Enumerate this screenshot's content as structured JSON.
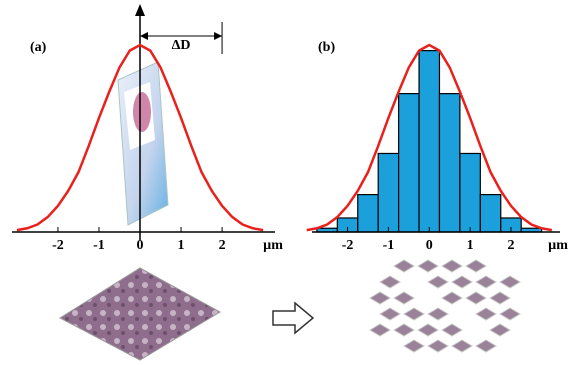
{
  "chart_data": [
    {
      "type": "line",
      "panel_label": "(a)",
      "x_label": "µm",
      "x": [
        -3,
        -2.75,
        -2.5,
        -2.25,
        -2,
        -1.75,
        -1.5,
        -1.25,
        -1,
        -0.75,
        -0.5,
        -0.25,
        0,
        0.25,
        0.5,
        0.75,
        1,
        1.25,
        1.5,
        1.75,
        2,
        2.25,
        2.5,
        2.75,
        3
      ],
      "values": [
        0.01,
        0.02,
        0.04,
        0.08,
        0.14,
        0.22,
        0.32,
        0.46,
        0.61,
        0.75,
        0.88,
        0.97,
        1,
        0.97,
        0.88,
        0.75,
        0.61,
        0.46,
        0.32,
        0.22,
        0.14,
        0.08,
        0.04,
        0.02,
        0.01
      ],
      "color": "#e8211d",
      "xlim": [
        -3.12,
        3.29
      ],
      "ylim": [
        0,
        1
      ],
      "xticks": [
        -2,
        -1,
        0,
        1,
        2
      ],
      "annotation": {
        "text": "ΔD",
        "x": [
          0,
          2
        ]
      }
    },
    {
      "type": "histogram",
      "panel_label": "(b)",
      "x_label": "µm",
      "bins": [
        -2.75,
        -2.25,
        -1.75,
        -1.25,
        -0.75,
        -0.25,
        0.25,
        0.75,
        1.25,
        1.75,
        2.25,
        2.75
      ],
      "values": [
        0.02,
        0.075,
        0.2,
        0.42,
        0.74,
        0.97,
        0.74,
        0.42,
        0.2,
        0.075,
        0.02
      ],
      "color": "#1ba0dc",
      "curve": {
        "x": [
          -3,
          -2.75,
          -2.5,
          -2.25,
          -2,
          -1.75,
          -1.5,
          -1.25,
          -1,
          -0.75,
          -0.5,
          -0.25,
          0,
          0.25,
          0.5,
          0.75,
          1,
          1.25,
          1.5,
          1.75,
          2,
          2.25,
          2.5,
          2.75,
          3
        ],
        "values": [
          0.01,
          0.02,
          0.04,
          0.08,
          0.14,
          0.22,
          0.32,
          0.46,
          0.61,
          0.75,
          0.88,
          0.97,
          1,
          0.97,
          0.88,
          0.75,
          0.61,
          0.46,
          0.32,
          0.22,
          0.14,
          0.08,
          0.04,
          0.02,
          0.01
        ],
        "color": "#e8211d"
      },
      "xlim": [
        -2.87,
        3.2
      ],
      "ylim": [
        0,
        1
      ],
      "xticks": [
        -2,
        -1,
        0,
        1,
        2
      ]
    }
  ]
}
